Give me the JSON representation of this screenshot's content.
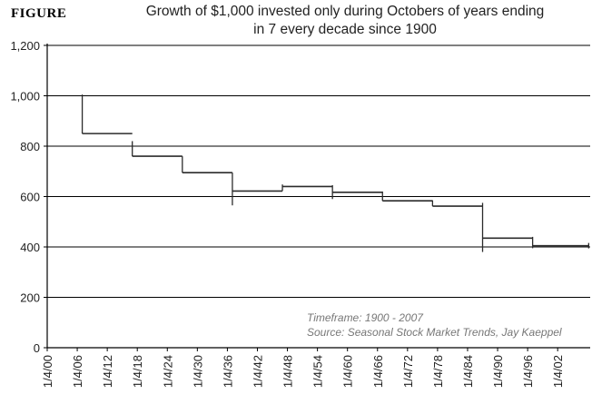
{
  "figure_label": "FIGURE",
  "title_line1": "Growth of $1,000 invested only during Octobers of years ending",
  "title_line2": "in 7 every decade since 1900",
  "annotation_line1": "Timeframe: 1900 - 2007",
  "annotation_line2": "Source: Seasonal Stock Market Trends, Jay Kaeppel",
  "chart_data": {
    "type": "line",
    "title": "Growth of $1,000 invested only during Octobers of years ending in 7 every decade since 1900",
    "xlabel": "",
    "ylabel": "",
    "ylim": [
      0,
      1200
    ],
    "y_ticks": [
      "0",
      "200",
      "400",
      "600",
      "800",
      "1,000",
      "1,200"
    ],
    "x_ticks": [
      "1/4/00",
      "1/4/06",
      "1/4/12",
      "1/4/18",
      "1/4/24",
      "1/4/30",
      "1/4/36",
      "1/4/42",
      "1/4/48",
      "1/4/54",
      "1/4/60",
      "1/4/66",
      "1/4/72",
      "1/4/78",
      "1/4/84",
      "1/4/90",
      "1/4/96",
      "1/4/02"
    ],
    "gridlines": "horizontal",
    "step_series": {
      "x_years": [
        1907,
        1917,
        1927,
        1937,
        1947,
        1957,
        1967,
        1977,
        1987,
        1997
      ],
      "levels": [
        850,
        760,
        695,
        622,
        640,
        617,
        583,
        562,
        435,
        405
      ],
      "end_year": 2007,
      "opening_value": 1000,
      "october_range": [
        [
          850,
          1005
        ],
        [
          760,
          820
        ],
        [
          695,
          760
        ],
        [
          565,
          695
        ],
        [
          622,
          648
        ],
        [
          590,
          645
        ],
        [
          583,
          620
        ],
        [
          562,
          585
        ],
        [
          380,
          575
        ],
        [
          395,
          440
        ]
      ]
    }
  }
}
